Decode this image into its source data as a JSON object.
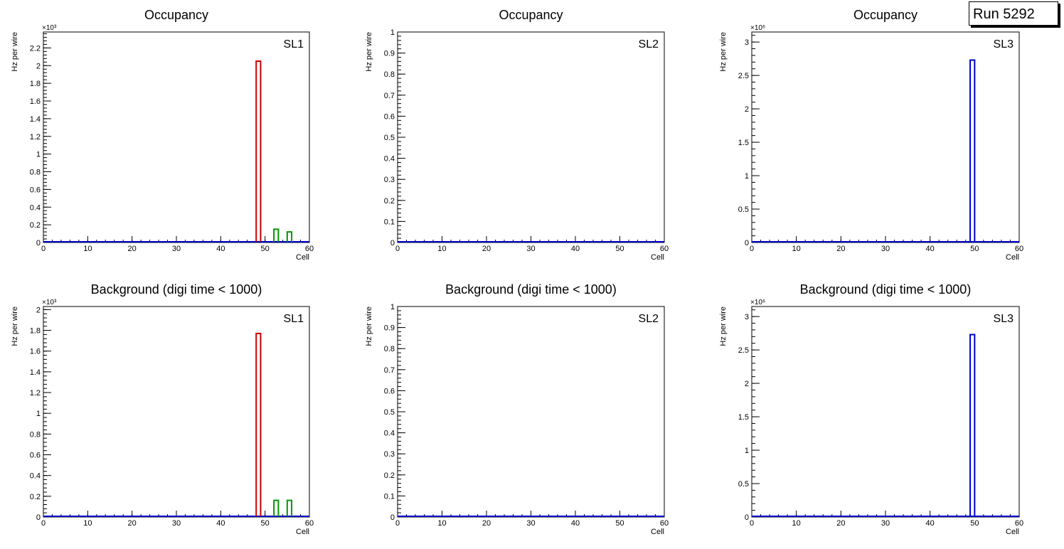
{
  "run_label": "Run 5292",
  "chart_data": [
    {
      "type": "bar",
      "title": "Occupancy",
      "label": "SL1",
      "xlabel": "Cell",
      "ylabel": "Hz per wire",
      "exponent_label": "×10³",
      "xlim": [
        0,
        60
      ],
      "ylim": [
        0,
        2.38
      ],
      "yticks": [
        0,
        0.2,
        0.4,
        0.6,
        0.8,
        1,
        1.2,
        1.4,
        1.6,
        1.8,
        2,
        2.2
      ],
      "ytick_labels": [
        "0",
        "0.2",
        "0.4",
        "0.6",
        "0.8",
        "1",
        "1.2",
        "1.4",
        "1.6",
        "1.8",
        "2",
        "2.2"
      ],
      "xticks": [
        0,
        10,
        20,
        30,
        40,
        50,
        60
      ],
      "xtick_labels": [
        "0",
        "10",
        "20",
        "30",
        "40",
        "50",
        "60"
      ],
      "series": [
        {
          "color": "#cc0000",
          "bins": [
            {
              "x0": 48,
              "x1": 49,
              "value": 2.05
            }
          ]
        },
        {
          "color": "#009900",
          "bins": [
            {
              "x0": 52,
              "x1": 53,
              "value": 0.15
            },
            {
              "x0": 55,
              "x1": 56,
              "value": 0.12
            }
          ]
        },
        {
          "color": "#0000cc",
          "bins": []
        }
      ]
    },
    {
      "type": "bar",
      "title": "Occupancy",
      "label": "SL2",
      "xlabel": "Cell",
      "ylabel": "Hz per wire",
      "exponent_label": "",
      "xlim": [
        0,
        60
      ],
      "ylim": [
        0,
        1
      ],
      "yticks": [
        0,
        0.1,
        0.2,
        0.3,
        0.4,
        0.5,
        0.6,
        0.7,
        0.8,
        0.9,
        1
      ],
      "ytick_labels": [
        "0",
        "0.1",
        "0.2",
        "0.3",
        "0.4",
        "0.5",
        "0.6",
        "0.7",
        "0.8",
        "0.9",
        "1"
      ],
      "xticks": [
        0,
        10,
        20,
        30,
        40,
        50,
        60
      ],
      "xtick_labels": [
        "0",
        "10",
        "20",
        "30",
        "40",
        "50",
        "60"
      ],
      "series": [
        {
          "color": "#0000cc",
          "bins": []
        }
      ]
    },
    {
      "type": "bar",
      "title": "Occupancy",
      "label": "SL3",
      "xlabel": "Cell",
      "ylabel": "Hz per wire",
      "exponent_label": "×10⁶",
      "xlim": [
        0,
        60
      ],
      "ylim": [
        0,
        3.15
      ],
      "yticks": [
        0,
        0.5,
        1,
        1.5,
        2,
        2.5,
        3
      ],
      "ytick_labels": [
        "0",
        "0.5",
        "1",
        "1.5",
        "2",
        "2.5",
        "3"
      ],
      "xticks": [
        0,
        10,
        20,
        30,
        40,
        50,
        60
      ],
      "xtick_labels": [
        "0",
        "10",
        "20",
        "30",
        "40",
        "50",
        "60"
      ],
      "series": [
        {
          "color": "#0000cc",
          "bins": [
            {
              "x0": 49,
              "x1": 50,
              "value": 2.73
            }
          ]
        }
      ]
    },
    {
      "type": "bar",
      "title": "Background (digi time < 1000)",
      "label": "SL1",
      "xlabel": "Cell",
      "ylabel": "Hz per wire",
      "exponent_label": "×10³",
      "xlim": [
        0,
        60
      ],
      "ylim": [
        0,
        2.03
      ],
      "yticks": [
        0,
        0.2,
        0.4,
        0.6,
        0.8,
        1,
        1.2,
        1.4,
        1.6,
        1.8,
        2
      ],
      "ytick_labels": [
        "0",
        "0.2",
        "0.4",
        "0.6",
        "0.8",
        "1",
        "1.2",
        "1.4",
        "1.6",
        "1.8",
        "2"
      ],
      "xticks": [
        0,
        10,
        20,
        30,
        40,
        50,
        60
      ],
      "xtick_labels": [
        "0",
        "10",
        "20",
        "30",
        "40",
        "50",
        "60"
      ],
      "series": [
        {
          "color": "#cc0000",
          "bins": [
            {
              "x0": 48,
              "x1": 49,
              "value": 1.77
            }
          ]
        },
        {
          "color": "#009900",
          "bins": [
            {
              "x0": 52,
              "x1": 53,
              "value": 0.16
            },
            {
              "x0": 55,
              "x1": 56,
              "value": 0.16
            }
          ]
        },
        {
          "color": "#0000cc",
          "bins": []
        }
      ]
    },
    {
      "type": "bar",
      "title": "Background (digi time < 1000)",
      "label": "SL2",
      "xlabel": "Cell",
      "ylabel": "Hz per wire",
      "exponent_label": "",
      "xlim": [
        0,
        60
      ],
      "ylim": [
        0,
        1
      ],
      "yticks": [
        0,
        0.1,
        0.2,
        0.3,
        0.4,
        0.5,
        0.6,
        0.7,
        0.8,
        0.9,
        1
      ],
      "ytick_labels": [
        "0",
        "0.1",
        "0.2",
        "0.3",
        "0.4",
        "0.5",
        "0.6",
        "0.7",
        "0.8",
        "0.9",
        "1"
      ],
      "xticks": [
        0,
        10,
        20,
        30,
        40,
        50,
        60
      ],
      "xtick_labels": [
        "0",
        "10",
        "20",
        "30",
        "40",
        "50",
        "60"
      ],
      "series": [
        {
          "color": "#0000cc",
          "bins": []
        }
      ]
    },
    {
      "type": "bar",
      "title": "Background (digi time < 1000)",
      "label": "SL3",
      "xlabel": "Cell",
      "ylabel": "Hz per wire",
      "exponent_label": "×10⁶",
      "xlim": [
        0,
        60
      ],
      "ylim": [
        0,
        3.15
      ],
      "yticks": [
        0,
        0.5,
        1,
        1.5,
        2,
        2.5,
        3
      ],
      "ytick_labels": [
        "0",
        "0.5",
        "1",
        "1.5",
        "2",
        "2.5",
        "3"
      ],
      "xticks": [
        0,
        10,
        20,
        30,
        40,
        50,
        60
      ],
      "xtick_labels": [
        "0",
        "10",
        "20",
        "30",
        "40",
        "50",
        "60"
      ],
      "series": [
        {
          "color": "#0000cc",
          "bins": [
            {
              "x0": 49,
              "x1": 50,
              "value": 2.73
            }
          ]
        }
      ]
    }
  ]
}
